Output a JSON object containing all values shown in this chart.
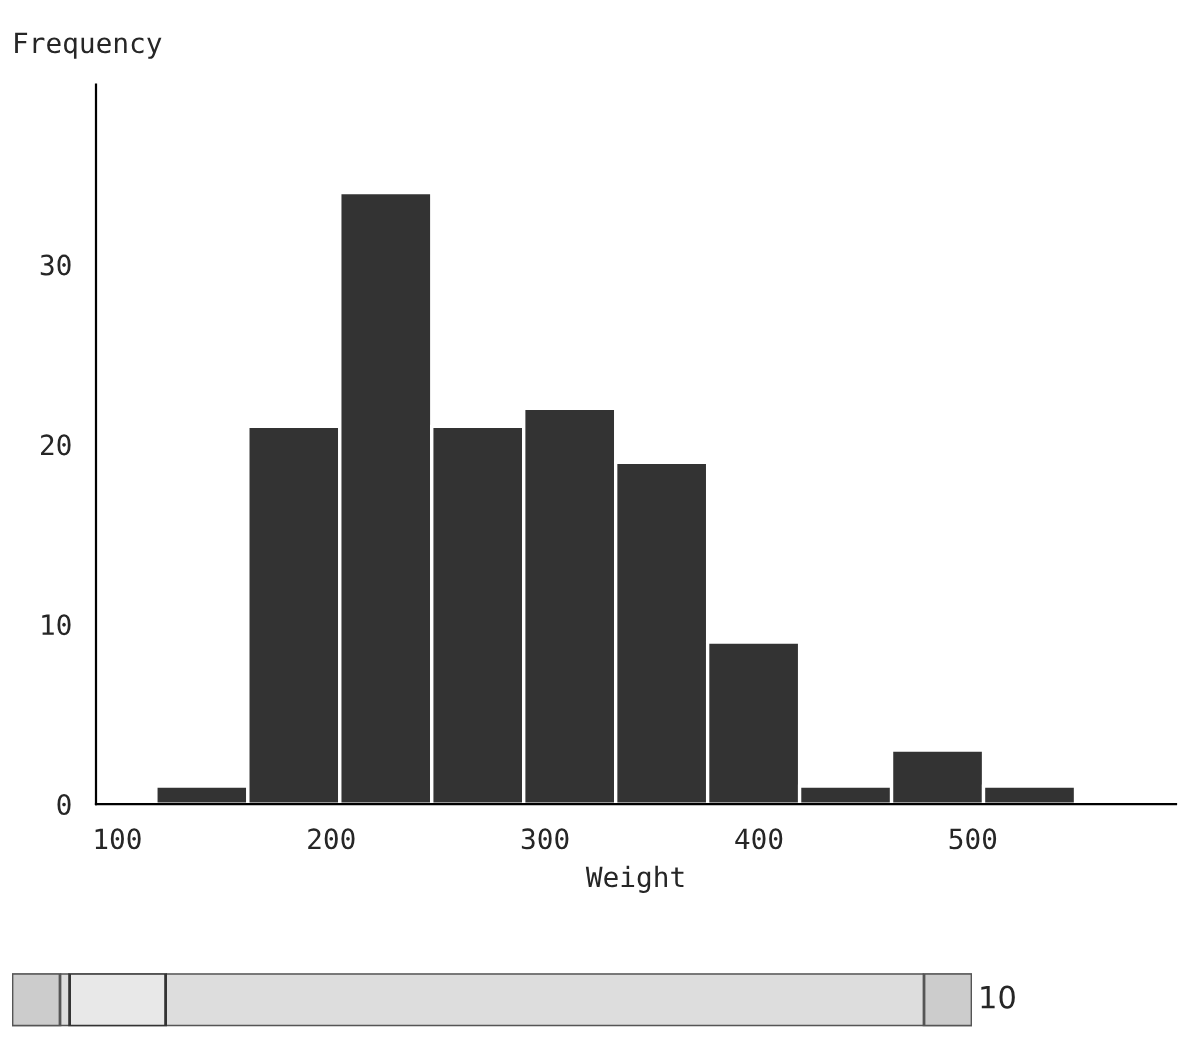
{
  "chart_data": {
    "type": "histogram",
    "xlabel": "Weight",
    "ylabel": "Frequency",
    "bins": [
      118,
      161,
      204,
      247,
      290,
      333,
      376,
      419,
      462,
      505,
      548
    ],
    "values": [
      1,
      21,
      34,
      21,
      22,
      19,
      9,
      1,
      3,
      1
    ],
    "color": "#333333",
    "xlim": [
      90,
      595
    ],
    "xticks": [
      100,
      200,
      300,
      400,
      500
    ],
    "ylim": [
      0,
      40
    ],
    "yticks": [
      0,
      10,
      20,
      30
    ],
    "grid": false,
    "legend": false,
    "annotations": [
      "10"
    ]
  }
}
